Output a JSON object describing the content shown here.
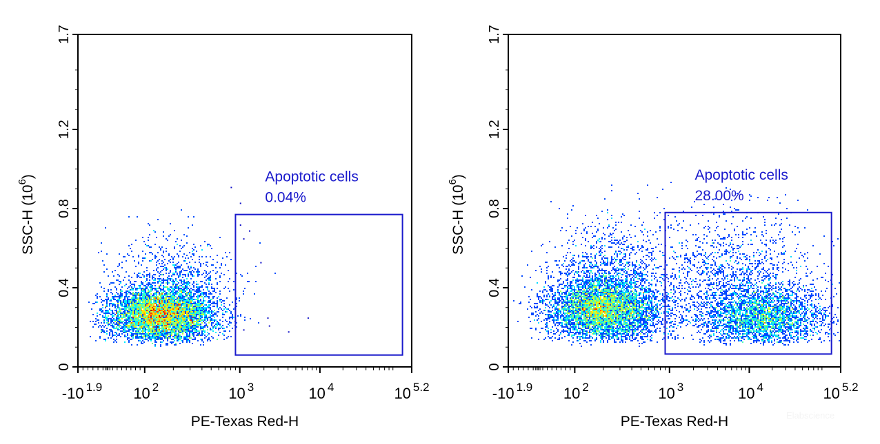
{
  "chart_data": [
    {
      "type": "scatter",
      "subtype": "flow-cytometry density dot plot",
      "xlabel": "PE-Texas Red-H",
      "ylabel": "SSC-H",
      "ylabel_unit_base": "10",
      "ylabel_unit_exp": "6",
      "x_scale": "biexponential",
      "x_ticks": [
        {
          "base": "-10",
          "exp": "1.9"
        },
        {
          "base": "10",
          "exp": "2"
        },
        {
          "base": "10",
          "exp": "3"
        },
        {
          "base": "10",
          "exp": "4"
        },
        {
          "base": "10",
          "exp": "5.2"
        }
      ],
      "y_ticks": [
        "0",
        "0.4",
        "0.8",
        "1.2",
        "1.7"
      ],
      "ylim": [
        0,
        1.7
      ],
      "gate": {
        "label": "Apoptotic cells",
        "percent": "0.04%",
        "x_range": [
          900,
          120000
        ],
        "y_range": [
          0.06,
          0.77
        ],
        "color": "#1a1acc"
      },
      "populations": [
        {
          "x_median": 150,
          "x_spread_decades": 0.28,
          "y_mean": 0.26,
          "y_sd": 0.07,
          "n": 6000
        },
        {
          "x_median": 190,
          "x_spread_decades": 0.3,
          "y_mean": 0.42,
          "y_sd": 0.12,
          "n": 900
        }
      ],
      "gated_events": [
        [
          1000,
          0.72
        ],
        [
          1100,
          0.65
        ],
        [
          1300,
          0.69
        ],
        [
          1800,
          0.53
        ],
        [
          1100,
          0.19
        ],
        [
          2200,
          0.25
        ],
        [
          2300,
          0.21
        ],
        [
          4000,
          0.18
        ],
        [
          7000,
          0.25
        ],
        [
          800,
          0.91
        ],
        [
          1000,
          0.83
        ]
      ]
    },
    {
      "type": "scatter",
      "subtype": "flow-cytometry density dot plot",
      "xlabel": "PE-Texas Red-H",
      "ylabel": "SSC-H",
      "ylabel_unit_base": "10",
      "ylabel_unit_exp": "6",
      "x_scale": "biexponential",
      "x_ticks": [
        {
          "base": "-10",
          "exp": "1.9"
        },
        {
          "base": "10",
          "exp": "2"
        },
        {
          "base": "10",
          "exp": "3"
        },
        {
          "base": "10",
          "exp": "4"
        },
        {
          "base": "10",
          "exp": "5.2"
        }
      ],
      "y_ticks": [
        "0",
        "0.4",
        "0.8",
        "1.2",
        "1.7"
      ],
      "ylim": [
        0,
        1.7
      ],
      "gate": {
        "label": "Apoptotic cells",
        "percent": "28.00%",
        "x_range": [
          900,
          120000
        ],
        "y_range": [
          0.065,
          0.78
        ],
        "color": "#1a1acc"
      },
      "populations": [
        {
          "x_median": 200,
          "x_spread_decades": 0.3,
          "y_mean": 0.29,
          "y_sd": 0.08,
          "n": 5500
        },
        {
          "x_median": 230,
          "x_spread_decades": 0.3,
          "y_mean": 0.48,
          "y_sd": 0.13,
          "n": 1000
        },
        {
          "x_median": 15000,
          "x_spread_decades": 0.4,
          "y_mean": 0.25,
          "y_sd": 0.08,
          "n": 3000
        },
        {
          "x_median": 6000,
          "x_spread_decades": 0.55,
          "y_mean": 0.42,
          "y_sd": 0.17,
          "n": 1600
        }
      ],
      "gated_events": []
    }
  ],
  "watermark": "Elabscience"
}
